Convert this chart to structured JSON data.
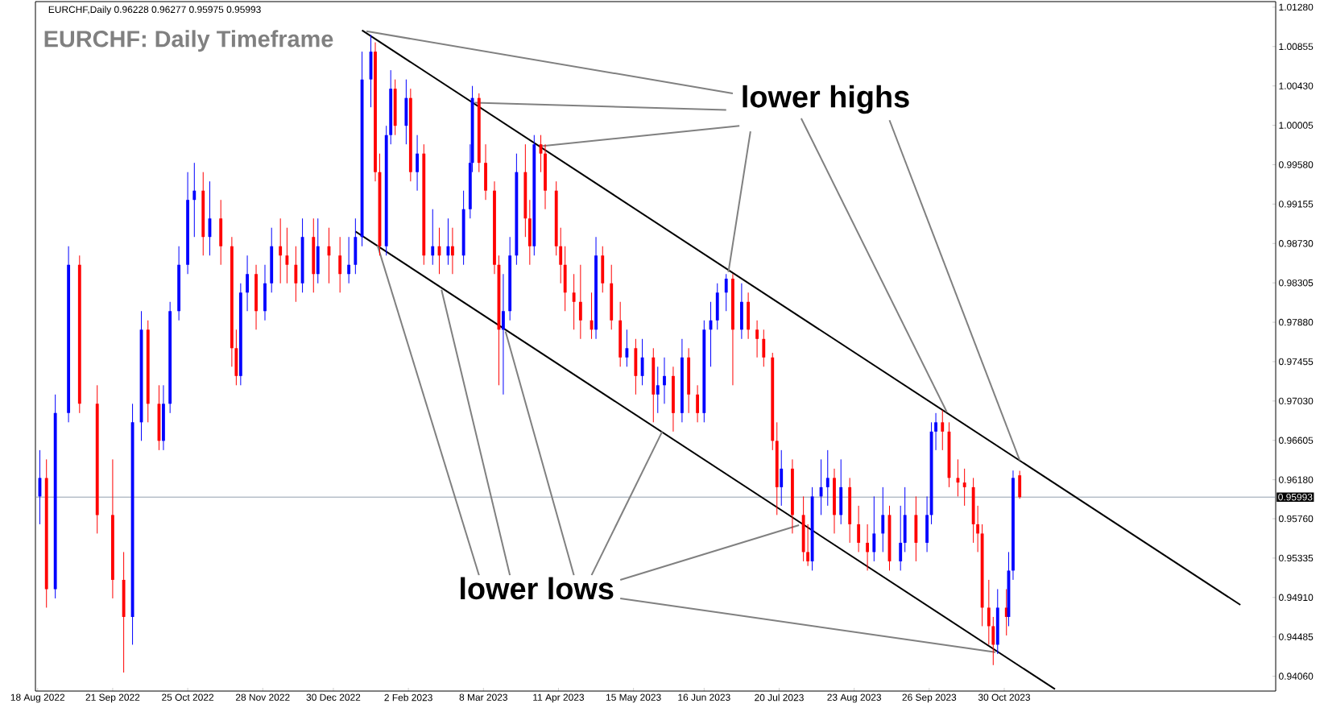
{
  "chart_data": {
    "type": "candlestick",
    "title": "EURCHF: Daily Timeframe",
    "subtitle": "EURCHF,Daily 0.96228 0.96277 0.95975 0.95993",
    "x": [
      "2022-08-19",
      "2022-08-22",
      "2022-08-26",
      "2022-09-01",
      "2022-09-06",
      "2022-09-14",
      "2022-09-21",
      "2022-09-26",
      "2022-09-30",
      "2022-10-04",
      "2022-10-07",
      "2022-10-12",
      "2022-10-14",
      "2022-10-17",
      "2022-10-21",
      "2022-10-25",
      "2022-10-28",
      "2022-11-01",
      "2022-11-04",
      "2022-11-09",
      "2022-11-14",
      "2022-11-16",
      "2022-11-18",
      "2022-11-21",
      "2022-11-25",
      "2022-11-29",
      "2022-12-02",
      "2022-12-06",
      "2022-12-09",
      "2022-12-13",
      "2022-12-16",
      "2022-12-21",
      "2022-12-23",
      "2022-12-28",
      "2023-01-02",
      "2023-01-06",
      "2023-01-09",
      "2023-01-12",
      "2023-01-16",
      "2023-01-18",
      "2023-01-20",
      "2023-01-23",
      "2023-01-25",
      "2023-01-27",
      "2023-02-01",
      "2023-02-03",
      "2023-02-06",
      "2023-02-09",
      "2023-02-13",
      "2023-02-16",
      "2023-02-20",
      "2023-02-22",
      "2023-02-27",
      "2023-03-02",
      "2023-03-03",
      "2023-03-06",
      "2023-03-09",
      "2023-03-13",
      "2023-03-15",
      "2023-03-17",
      "2023-03-20",
      "2023-03-23",
      "2023-03-27",
      "2023-03-29",
      "2023-03-31",
      "2023-04-03",
      "2023-04-05",
      "2023-04-10",
      "2023-04-12",
      "2023-04-14",
      "2023-04-18",
      "2023-04-21",
      "2023-04-26",
      "2023-04-28",
      "2023-05-01",
      "2023-05-05",
      "2023-05-09",
      "2023-05-12",
      "2023-05-16",
      "2023-05-19",
      "2023-05-24",
      "2023-05-26",
      "2023-05-29",
      "2023-06-02",
      "2023-06-06",
      "2023-06-09",
      "2023-06-13",
      "2023-06-16",
      "2023-06-19",
      "2023-06-22",
      "2023-06-26",
      "2023-06-29",
      "2023-07-03",
      "2023-07-06",
      "2023-07-10",
      "2023-07-13",
      "2023-07-17",
      "2023-07-19",
      "2023-07-21",
      "2023-07-26",
      "2023-07-31",
      "2023-08-02",
      "2023-08-04",
      "2023-08-08",
      "2023-08-11",
      "2023-08-14",
      "2023-08-17",
      "2023-08-21",
      "2023-08-25",
      "2023-08-29",
      "2023-09-01",
      "2023-09-05",
      "2023-09-08",
      "2023-09-13",
      "2023-09-15",
      "2023-09-20",
      "2023-09-25",
      "2023-09-27",
      "2023-09-29",
      "2023-10-02",
      "2023-10-05",
      "2023-10-09",
      "2023-10-12",
      "2023-10-16",
      "2023-10-18",
      "2023-10-20",
      "2023-10-23",
      "2023-10-25",
      "2023-10-27",
      "2023-10-31",
      "2023-11-01",
      "2023-11-03",
      "2023-11-06"
    ],
    "ohlc": [
      [
        0.96,
        0.965,
        0.957,
        0.962
      ],
      [
        0.962,
        0.964,
        0.948,
        0.95
      ],
      [
        0.95,
        0.971,
        0.949,
        0.969
      ],
      [
        0.969,
        0.987,
        0.968,
        0.985
      ],
      [
        0.985,
        0.986,
        0.969,
        0.97
      ],
      [
        0.97,
        0.972,
        0.956,
        0.958
      ],
      [
        0.958,
        0.964,
        0.949,
        0.951
      ],
      [
        0.951,
        0.954,
        0.941,
        0.947
      ],
      [
        0.947,
        0.97,
        0.944,
        0.968
      ],
      [
        0.968,
        0.98,
        0.966,
        0.978
      ],
      [
        0.978,
        0.979,
        0.968,
        0.97
      ],
      [
        0.97,
        0.972,
        0.965,
        0.966
      ],
      [
        0.966,
        0.972,
        0.965,
        0.97
      ],
      [
        0.97,
        0.981,
        0.969,
        0.98
      ],
      [
        0.98,
        0.987,
        0.979,
        0.985
      ],
      [
        0.985,
        0.995,
        0.984,
        0.992
      ],
      [
        0.992,
        0.996,
        0.988,
        0.993
      ],
      [
        0.993,
        0.995,
        0.986,
        0.988
      ],
      [
        0.988,
        0.994,
        0.986,
        0.99
      ],
      [
        0.99,
        0.992,
        0.985,
        0.987
      ],
      [
        0.987,
        0.988,
        0.974,
        0.976
      ],
      [
        0.976,
        0.978,
        0.972,
        0.973
      ],
      [
        0.973,
        0.983,
        0.972,
        0.982
      ],
      [
        0.982,
        0.986,
        0.98,
        0.984
      ],
      [
        0.984,
        0.985,
        0.978,
        0.98
      ],
      [
        0.98,
        0.985,
        0.979,
        0.983
      ],
      [
        0.983,
        0.989,
        0.982,
        0.987
      ],
      [
        0.987,
        0.99,
        0.983,
        0.986
      ],
      [
        0.986,
        0.989,
        0.983,
        0.985
      ],
      [
        0.985,
        0.987,
        0.981,
        0.983
      ],
      [
        0.983,
        0.99,
        0.982,
        0.988
      ],
      [
        0.988,
        0.99,
        0.982,
        0.984
      ],
      [
        0.984,
        0.99,
        0.983,
        0.987
      ],
      [
        0.987,
        0.989,
        0.983,
        0.986
      ],
      [
        0.986,
        0.988,
        0.982,
        0.984
      ],
      [
        0.984,
        0.988,
        0.983,
        0.985
      ],
      [
        0.985,
        0.99,
        0.984,
        0.988
      ],
      [
        0.988,
        1.008,
        0.987,
        1.005
      ],
      [
        1.005,
        1.0098,
        1.002,
        1.008
      ],
      [
        1.008,
        1.009,
        0.994,
        0.995
      ],
      [
        0.995,
        0.997,
        0.986,
        0.987
      ],
      [
        0.987,
        1.0,
        0.986,
        0.999
      ],
      [
        0.999,
        1.006,
        0.998,
        1.004
      ],
      [
        1.004,
        1.005,
        0.999,
        1.0
      ],
      [
        1.0,
        1.005,
        0.998,
        1.003
      ],
      [
        1.003,
        1.004,
        0.994,
        0.995
      ],
      [
        0.995,
        0.999,
        0.993,
        0.997
      ],
      [
        0.997,
        0.998,
        0.985,
        0.986
      ],
      [
        0.986,
        0.991,
        0.985,
        0.987
      ],
      [
        0.987,
        0.989,
        0.984,
        0.986
      ],
      [
        0.986,
        0.99,
        0.985,
        0.987
      ],
      [
        0.987,
        0.989,
        0.984,
        0.986
      ],
      [
        0.986,
        0.993,
        0.985,
        0.991
      ],
      [
        0.991,
        0.998,
        0.99,
        0.996
      ],
      [
        0.996,
        1.0043,
        0.995,
        1.003
      ],
      [
        1.003,
        1.0035,
        0.995,
        0.996
      ],
      [
        0.996,
        0.998,
        0.992,
        0.993
      ],
      [
        0.993,
        0.994,
        0.984,
        0.985
      ],
      [
        0.985,
        0.986,
        0.972,
        0.978
      ],
      [
        0.978,
        0.984,
        0.971,
        0.98
      ],
      [
        0.98,
        0.988,
        0.979,
        0.986
      ],
      [
        0.986,
        0.997,
        0.985,
        0.995
      ],
      [
        0.995,
        0.998,
        0.988,
        0.99
      ],
      [
        0.99,
        0.992,
        0.985,
        0.987
      ],
      [
        0.987,
        0.999,
        0.986,
        0.998
      ],
      [
        0.998,
        0.999,
        0.995,
        0.997
      ],
      [
        0.997,
        0.998,
        0.991,
        0.993
      ],
      [
        0.993,
        0.994,
        0.986,
        0.987
      ],
      [
        0.987,
        0.989,
        0.983,
        0.985
      ],
      [
        0.985,
        0.987,
        0.98,
        0.982
      ],
      [
        0.982,
        0.984,
        0.978,
        0.981
      ],
      [
        0.981,
        0.985,
        0.977,
        0.979
      ],
      [
        0.979,
        0.982,
        0.977,
        0.978
      ],
      [
        0.978,
        0.988,
        0.977,
        0.986
      ],
      [
        0.986,
        0.987,
        0.982,
        0.983
      ],
      [
        0.983,
        0.985,
        0.978,
        0.979
      ],
      [
        0.979,
        0.981,
        0.974,
        0.975
      ],
      [
        0.975,
        0.978,
        0.974,
        0.976
      ],
      [
        0.976,
        0.977,
        0.971,
        0.973
      ],
      [
        0.973,
        0.977,
        0.972,
        0.975
      ],
      [
        0.975,
        0.976,
        0.968,
        0.971
      ],
      [
        0.971,
        0.974,
        0.969,
        0.972
      ],
      [
        0.972,
        0.975,
        0.97,
        0.973
      ],
      [
        0.973,
        0.974,
        0.967,
        0.969
      ],
      [
        0.969,
        0.977,
        0.968,
        0.975
      ],
      [
        0.975,
        0.976,
        0.969,
        0.971
      ],
      [
        0.971,
        0.972,
        0.968,
        0.969
      ],
      [
        0.969,
        0.979,
        0.968,
        0.978
      ],
      [
        0.978,
        0.981,
        0.974,
        0.979
      ],
      [
        0.979,
        0.983,
        0.978,
        0.982
      ],
      [
        0.982,
        0.984,
        0.98,
        0.9835
      ],
      [
        0.9835,
        0.984,
        0.972,
        0.978
      ],
      [
        0.978,
        0.983,
        0.977,
        0.981
      ],
      [
        0.981,
        0.982,
        0.977,
        0.978
      ],
      [
        0.978,
        0.979,
        0.975,
        0.977
      ],
      [
        0.977,
        0.978,
        0.974,
        0.975
      ],
      [
        0.975,
        0.9755,
        0.965,
        0.966
      ],
      [
        0.966,
        0.968,
        0.958,
        0.961
      ],
      [
        0.961,
        0.965,
        0.959,
        0.963
      ],
      [
        0.963,
        0.964,
        0.956,
        0.958
      ],
      [
        0.958,
        0.96,
        0.953,
        0.954
      ],
      [
        0.954,
        0.957,
        0.9525,
        0.953
      ],
      [
        0.953,
        0.961,
        0.952,
        0.96
      ],
      [
        0.96,
        0.964,
        0.958,
        0.961
      ],
      [
        0.961,
        0.965,
        0.959,
        0.962
      ],
      [
        0.962,
        0.963,
        0.956,
        0.958
      ],
      [
        0.958,
        0.964,
        0.957,
        0.961
      ],
      [
        0.961,
        0.962,
        0.955,
        0.957
      ],
      [
        0.957,
        0.959,
        0.954,
        0.955
      ],
      [
        0.955,
        0.957,
        0.952,
        0.954
      ],
      [
        0.954,
        0.96,
        0.953,
        0.956
      ],
      [
        0.956,
        0.961,
        0.954,
        0.958
      ],
      [
        0.958,
        0.959,
        0.952,
        0.953
      ],
      [
        0.953,
        0.959,
        0.952,
        0.955
      ],
      [
        0.955,
        0.961,
        0.954,
        0.958
      ],
      [
        0.958,
        0.96,
        0.953,
        0.955
      ],
      [
        0.955,
        0.96,
        0.954,
        0.958
      ],
      [
        0.958,
        0.968,
        0.957,
        0.967
      ],
      [
        0.967,
        0.969,
        0.965,
        0.968
      ],
      [
        0.968,
        0.9693,
        0.965,
        0.967
      ],
      [
        0.967,
        0.968,
        0.961,
        0.962
      ],
      [
        0.962,
        0.964,
        0.96,
        0.9615
      ],
      [
        0.9615,
        0.963,
        0.959,
        0.961
      ],
      [
        0.961,
        0.962,
        0.955,
        0.957
      ],
      [
        0.957,
        0.959,
        0.954,
        0.956
      ],
      [
        0.956,
        0.957,
        0.946,
        0.948
      ],
      [
        0.948,
        0.951,
        0.944,
        0.946
      ],
      [
        0.946,
        0.947,
        0.9418,
        0.944
      ],
      [
        0.944,
        0.95,
        0.943,
        0.948
      ],
      [
        0.948,
        0.95,
        0.945,
        0.947
      ],
      [
        0.947,
        0.954,
        0.946,
        0.952
      ],
      [
        0.952,
        0.9628,
        0.951,
        0.962
      ],
      [
        0.96228,
        0.96277,
        0.95975,
        0.95993
      ]
    ],
    "series": [
      {
        "type": "line",
        "color": "#000000",
        "x": [
          "2023-01-12",
          "2024-02-14"
        ],
        "values": [
          1.0103,
          0.9483
        ]
      },
      {
        "type": "line",
        "color": "#000000",
        "x": [
          "2023-01-09",
          "2023-11-22"
        ],
        "values": [
          0.9886,
          0.9392
        ]
      },
      {
        "type": "line",
        "color": "#808080",
        "x": [
          "2023-06-29",
          "2023-01-14"
        ],
        "values": [
          1.0035,
          1.0102
        ]
      },
      {
        "type": "line",
        "color": "#808080",
        "x": [
          "2023-06-26",
          "2023-03-04"
        ],
        "values": [
          1.0017,
          1.0025
        ]
      },
      {
        "type": "line",
        "color": "#808080",
        "x": [
          "2023-07-02",
          "2023-04-03"
        ],
        "values": [
          1.0,
          0.9978
        ]
      },
      {
        "type": "line",
        "color": "#808080",
        "x": [
          "2023-07-07",
          "2023-06-27"
        ],
        "values": [
          0.9994,
          0.9842
        ]
      },
      {
        "type": "line",
        "color": "#808080",
        "x": [
          "2023-07-30",
          "2023-10-04"
        ],
        "values": [
          1.0008,
          0.9691
        ]
      },
      {
        "type": "line",
        "color": "#808080",
        "x": [
          "2023-09-08",
          "2023-11-06"
        ],
        "values": [
          1.0006,
          0.9639
        ]
      },
      {
        "type": "line",
        "color": "#808080",
        "x": [
          "2023-03-06",
          "2023-01-19"
        ],
        "values": [
          0.9515,
          0.9871
        ]
      },
      {
        "type": "line",
        "color": "#808080",
        "x": [
          "2023-03-20",
          "2023-02-17"
        ],
        "values": [
          0.9515,
          0.9823
        ]
      },
      {
        "type": "line",
        "color": "#808080",
        "x": [
          "2023-04-18",
          "2023-03-18"
        ],
        "values": [
          0.9515,
          0.9778
        ]
      },
      {
        "type": "line",
        "color": "#808080",
        "x": [
          "2023-04-26",
          "2023-05-28"
        ],
        "values": [
          0.9515,
          0.967
        ]
      },
      {
        "type": "line",
        "color": "#808080",
        "x": [
          "2023-05-09",
          "2023-07-29"
        ],
        "values": [
          0.951,
          0.9569
        ]
      },
      {
        "type": "line",
        "color": "#808080",
        "x": [
          "2023-05-09",
          "2023-10-26"
        ],
        "values": [
          0.949,
          0.9432
        ]
      }
    ],
    "xlim": [
      "2022-08-17",
      "2024-03-01"
    ],
    "xticks": [
      {
        "value": "2022-08-18",
        "label": "18 Aug 2022"
      },
      {
        "value": "2022-09-21",
        "label": "21 Sep 2022"
      },
      {
        "value": "2022-10-25",
        "label": "25 Oct 2022"
      },
      {
        "value": "2022-11-28",
        "label": "28 Nov 2022"
      },
      {
        "value": "2022-12-30",
        "label": "30 Dec 2022"
      },
      {
        "value": "2023-02-02",
        "label": "2 Feb 2023"
      },
      {
        "value": "2023-03-08",
        "label": "8 Mar 2023"
      },
      {
        "value": "2023-04-11",
        "label": "11 Apr 2023"
      },
      {
        "value": "2023-05-15",
        "label": "15 May 2023"
      },
      {
        "value": "2023-06-16",
        "label": "16 Jun 2023"
      },
      {
        "value": "2023-07-20",
        "label": "20 Jul 2023"
      },
      {
        "value": "2023-08-23",
        "label": "23 Aug 2023"
      },
      {
        "value": "2023-09-26",
        "label": "26 Sep 2023"
      },
      {
        "value": "2023-10-30",
        "label": "30 Oct 2023"
      }
    ],
    "ylim": [
      0.939,
      1.0134
    ],
    "yticks": [
      {
        "value": 0.9406,
        "label": "0.94060"
      },
      {
        "value": 0.94485,
        "label": "0.94485"
      },
      {
        "value": 0.9491,
        "label": "0.94910"
      },
      {
        "value": 0.95335,
        "label": "0.95335"
      },
      {
        "value": 0.9576,
        "label": "0.95760"
      },
      {
        "value": 0.9618,
        "label": "0.96180"
      },
      {
        "value": 0.96605,
        "label": "0.96605"
      },
      {
        "value": 0.9703,
        "label": "0.97030"
      },
      {
        "value": 0.97455,
        "label": "0.97455"
      },
      {
        "value": 0.9788,
        "label": "0.97880"
      },
      {
        "value": 0.98305,
        "label": "0.98305"
      },
      {
        "value": 0.9873,
        "label": "0.98730"
      },
      {
        "value": 0.99155,
        "label": "0.99155"
      },
      {
        "value": 0.9958,
        "label": "0.99580"
      },
      {
        "value": 1.00005,
        "label": "1.00005"
      },
      {
        "value": 1.0043,
        "label": "1.00430"
      },
      {
        "value": 1.00855,
        "label": "1.00855"
      },
      {
        "value": 1.0128,
        "label": "1.01280"
      }
    ],
    "ref_lines": [
      {
        "axis": "y",
        "value": 0.95993,
        "label": "0.95993",
        "color": "#778899"
      }
    ],
    "annotations": [
      "lower highs",
      "lower lows"
    ]
  }
}
